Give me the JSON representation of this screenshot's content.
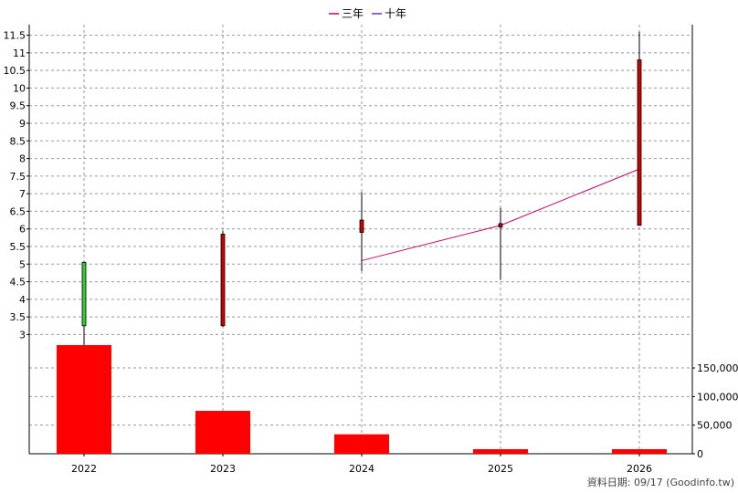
{
  "chart_data": {
    "type": "candlestick+bar",
    "legend": [
      {
        "label": "三年",
        "color": "#cc0066"
      },
      {
        "label": "十年",
        "color": "#6633cc"
      }
    ],
    "categories": [
      "2022",
      "2023",
      "2024",
      "2025",
      "2026"
    ],
    "price_axis": {
      "ticks": [
        "3",
        "3.5",
        "4",
        "4.5",
        "5",
        "5.5",
        "6",
        "6.5",
        "7",
        "7.5",
        "8",
        "8.5",
        "9",
        "9.5",
        "10",
        "10.5",
        "11",
        "11.5"
      ],
      "range": [
        2.7,
        11.8
      ]
    },
    "candles": [
      {
        "open": 3.25,
        "close": 5.05,
        "high": 5.08,
        "low": 2.7,
        "color": "#33cc33"
      },
      {
        "open": 5.85,
        "close": 3.25,
        "high": 5.95,
        "low": 3.22,
        "color": "#cc0000"
      },
      {
        "open": 6.25,
        "close": 5.9,
        "high": 7.05,
        "low": 4.8,
        "color": "#cc0000"
      },
      {
        "open": 6.15,
        "close": 6.05,
        "high": 6.6,
        "low": 4.55,
        "color": "#cc0000"
      },
      {
        "open": 10.8,
        "close": 6.1,
        "high": 11.6,
        "low": 6.1,
        "color": "#cc0000"
      }
    ],
    "series": [
      {
        "name": "三年",
        "color": "#cc0066",
        "values": [
          null,
          null,
          5.1,
          6.1,
          7.7
        ]
      }
    ],
    "volume_axis": {
      "ticks": [
        "0",
        "50,000",
        "100,000",
        "150,000"
      ],
      "range": [
        0,
        190000
      ]
    },
    "volume": [
      192000,
      75000,
      34000,
      8000,
      8000
    ],
    "volume_color": "#ff0000",
    "grid": true
  },
  "footer": {
    "source": "資料日期: 09/17  (Goodinfo.tw)"
  }
}
